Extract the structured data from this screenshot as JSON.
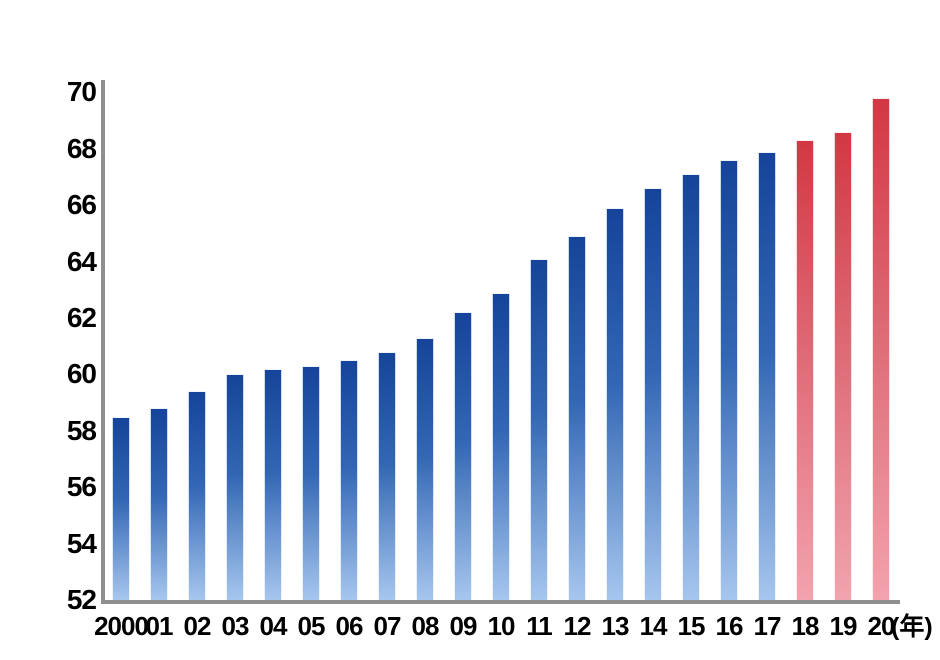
{
  "chart_data": {
    "type": "bar",
    "title": "",
    "xlabel": "",
    "ylabel": "",
    "x_unit_label": "(年)",
    "categories": [
      "2000",
      "01",
      "02",
      "03",
      "04",
      "05",
      "06",
      "07",
      "08",
      "09",
      "10",
      "11",
      "12",
      "13",
      "14",
      "15",
      "16",
      "17",
      "18",
      "19",
      "20"
    ],
    "values": [
      58.5,
      58.8,
      59.4,
      60.0,
      60.2,
      60.3,
      60.5,
      60.8,
      61.3,
      62.2,
      62.9,
      64.1,
      64.9,
      65.9,
      66.6,
      67.1,
      67.6,
      67.9,
      68.3,
      68.6,
      69.8
    ],
    "bar_styles": [
      "blue",
      "blue",
      "blue",
      "blue",
      "blue",
      "blue",
      "blue",
      "blue",
      "blue",
      "blue",
      "blue",
      "blue",
      "blue",
      "blue",
      "blue",
      "blue",
      "blue",
      "blue",
      "red",
      "red",
      "red"
    ],
    "ylim": [
      52,
      70
    ],
    "ytick_step": 2,
    "yticks": [
      70,
      68,
      66,
      64,
      62,
      60,
      58,
      56,
      54,
      52
    ],
    "grid": false,
    "legend": null,
    "colors": {
      "bar_blue_top": "#15449a",
      "bar_blue_mid": "#3367b4",
      "bar_blue_bottom": "#a6c6ee",
      "bar_red_top": "#d23843",
      "bar_red_mid": "#dd6974",
      "bar_red_bottom": "#f2a3ae",
      "axis_line": "#8f8f8f",
      "label_text": "#000000"
    }
  }
}
